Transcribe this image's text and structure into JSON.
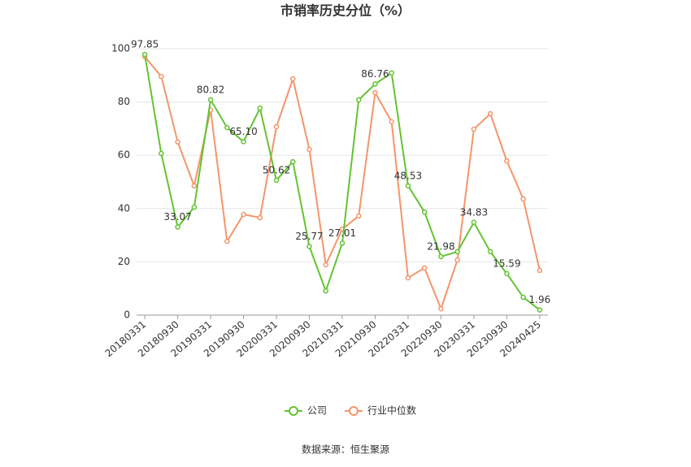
{
  "chart_data": {
    "type": "line",
    "title": "市销率历史分位（%）",
    "categories": [
      "20180331",
      null,
      "20180930",
      null,
      "20190331",
      null,
      "20190930",
      null,
      "20200331",
      null,
      "20200930",
      null,
      "20210331",
      null,
      "20210930",
      null,
      "20220331",
      null,
      "20220930",
      null,
      "20230331",
      null,
      "20230930",
      null,
      "20240425"
    ],
    "series": [
      {
        "name": "公司",
        "color": "#62c431",
        "values": [
          97.85,
          60.7,
          33.07,
          40.5,
          80.82,
          70.4,
          65.1,
          77.7,
          50.62,
          57.6,
          25.77,
          9.1,
          27.01,
          80.8,
          86.76,
          90.9,
          48.53,
          38.7,
          21.98,
          23.8,
          34.83,
          23.8,
          15.59,
          6.7,
          1.96
        ],
        "value_labels": [
          "97.85",
          null,
          "33.07",
          null,
          "80.82",
          null,
          "65.10",
          null,
          "50.62",
          null,
          "25.77",
          null,
          "27.01",
          null,
          "86.76",
          null,
          "48.53",
          null,
          "21.98",
          null,
          "34.83",
          null,
          "15.59",
          null,
          "1.96"
        ]
      },
      {
        "name": "行业中位数",
        "color": "#f4956a",
        "values": [
          97,
          89.6,
          65,
          48.5,
          77,
          27.7,
          37.8,
          36.6,
          70.7,
          88.7,
          62.2,
          18.9,
          32.3,
          37.2,
          83.5,
          72.6,
          14,
          17.7,
          2.4,
          20.7,
          69.8,
          75.6,
          57.9,
          43.6,
          16.8
        ]
      }
    ],
    "ylim": [
      0,
      100
    ],
    "yticks": [
      0,
      20,
      40,
      60,
      80,
      100
    ],
    "grid": true,
    "source": "数据来源：恒生聚源"
  }
}
